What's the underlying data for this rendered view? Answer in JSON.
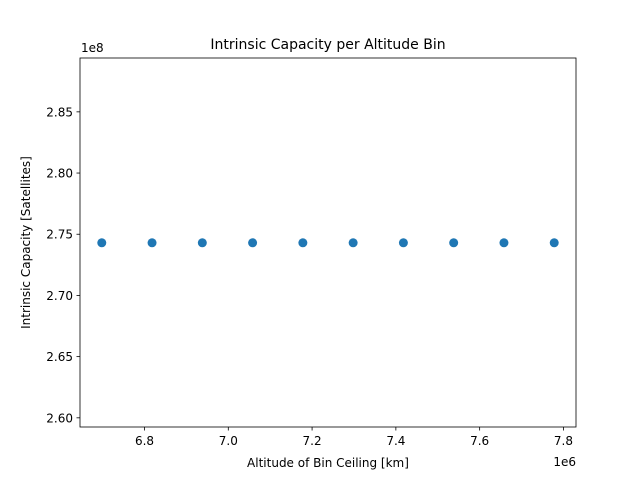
{
  "chart_data": {
    "type": "scatter",
    "title": "Intrinsic Capacity per Altitude Bin",
    "xlabel": "Altitude of Bin Ceiling [km]",
    "ylabel": "Intrinsic Capacity [Satellites]",
    "x_offset_label": "1e6",
    "y_offset_label": "1e8",
    "xlim": [
      6.646,
      7.83
    ],
    "ylim": [
      2.5925,
      2.894
    ],
    "x_ticks": [
      6.8,
      7.0,
      7.2,
      7.4,
      7.6,
      7.8
    ],
    "x_tick_labels": [
      "6.8",
      "7.0",
      "7.2",
      "7.4",
      "7.6",
      "7.8"
    ],
    "y_ticks": [
      2.6,
      2.65,
      2.7,
      2.75,
      2.8,
      2.85
    ],
    "y_tick_labels": [
      "2.60",
      "2.65",
      "2.70",
      "2.75",
      "2.80",
      "2.85"
    ],
    "grid": false,
    "marker_color": "#1f77b4",
    "series": [
      {
        "x": [
          6.698,
          6.818,
          6.938,
          7.058,
          7.178,
          7.298,
          7.418,
          7.538,
          7.658,
          7.778
        ],
        "y": [
          2.743,
          2.743,
          2.743,
          2.743,
          2.743,
          2.743,
          2.743,
          2.743,
          2.743,
          2.743
        ]
      }
    ]
  }
}
